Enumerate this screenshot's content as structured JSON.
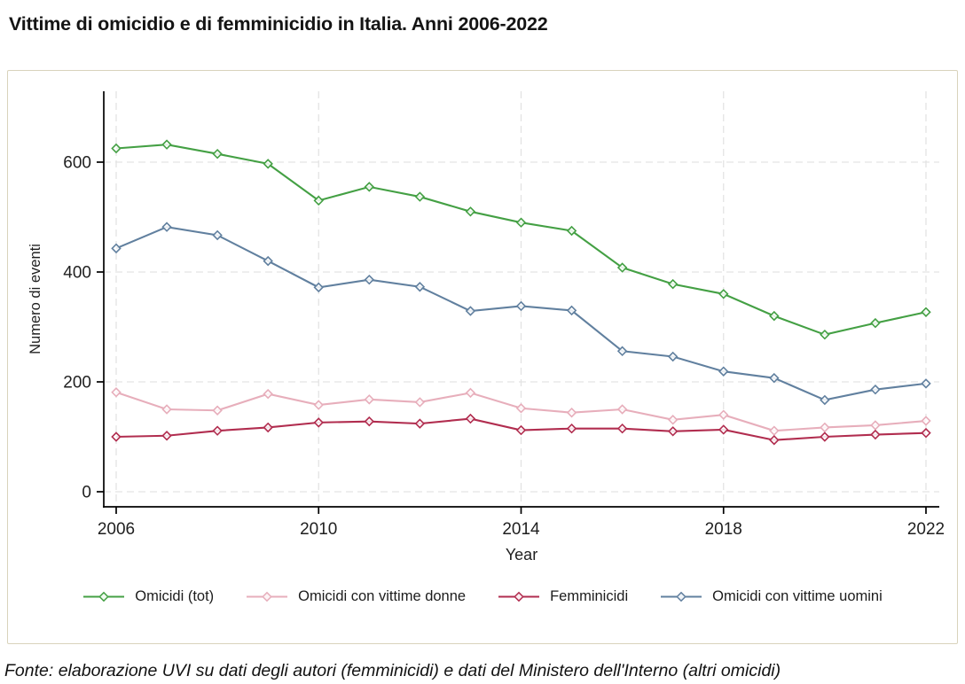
{
  "page": {
    "title": "Vittime di omicidio e di femminicidio in Italia. Anni 2006-2022",
    "source": "Fonte: elaborazione UVI su dati degli autori  (femminicidi) e dati del Ministero dell'Interno (altri omicidi)"
  },
  "chart_data": {
    "type": "line",
    "title": "Vittime di omicidio e di femminicidio in Italia. Anni 2006-2022",
    "xlabel": "Year",
    "ylabel": "Numero di eventi",
    "x": [
      2006,
      2007,
      2008,
      2009,
      2010,
      2011,
      2012,
      2013,
      2014,
      2015,
      2016,
      2017,
      2018,
      2019,
      2020,
      2021,
      2022
    ],
    "x_ticks": [
      2006,
      2010,
      2014,
      2018,
      2022
    ],
    "y_ticks": [
      0,
      200,
      400,
      600
    ],
    "ylim": [
      0,
      730
    ],
    "grid": "dashed, both axes",
    "legend_position": "bottom",
    "marker": "diamond",
    "series": [
      {
        "name": "Omicidi (tot)",
        "color": "#44a044",
        "values": [
          625,
          632,
          615,
          597,
          530,
          555,
          537,
          510,
          490,
          475,
          408,
          378,
          360,
          320,
          286,
          307,
          327
        ]
      },
      {
        "name": "Omicidi con vittime donne",
        "color": "#e7aebb",
        "values": [
          181,
          150,
          148,
          178,
          158,
          168,
          163,
          180,
          152,
          144,
          150,
          131,
          140,
          111,
          117,
          121,
          129
        ]
      },
      {
        "name": "Femminicidi",
        "color": "#b12d4f",
        "values": [
          100,
          102,
          111,
          117,
          126,
          128,
          124,
          133,
          112,
          115,
          115,
          110,
          113,
          94,
          100,
          104,
          107
        ]
      },
      {
        "name": "Omicidi con vittime uomini",
        "color": "#61809f",
        "values": [
          443,
          482,
          467,
          420,
          372,
          386,
          373,
          329,
          338,
          330,
          256,
          246,
          219,
          207,
          167,
          186,
          197
        ]
      }
    ],
    "style": {
      "grid_color": "#e3e3e3",
      "axis_color": "#000000",
      "tick_label_color": "#1f1f1f",
      "figure_border_color": "#d9d3bc"
    }
  }
}
